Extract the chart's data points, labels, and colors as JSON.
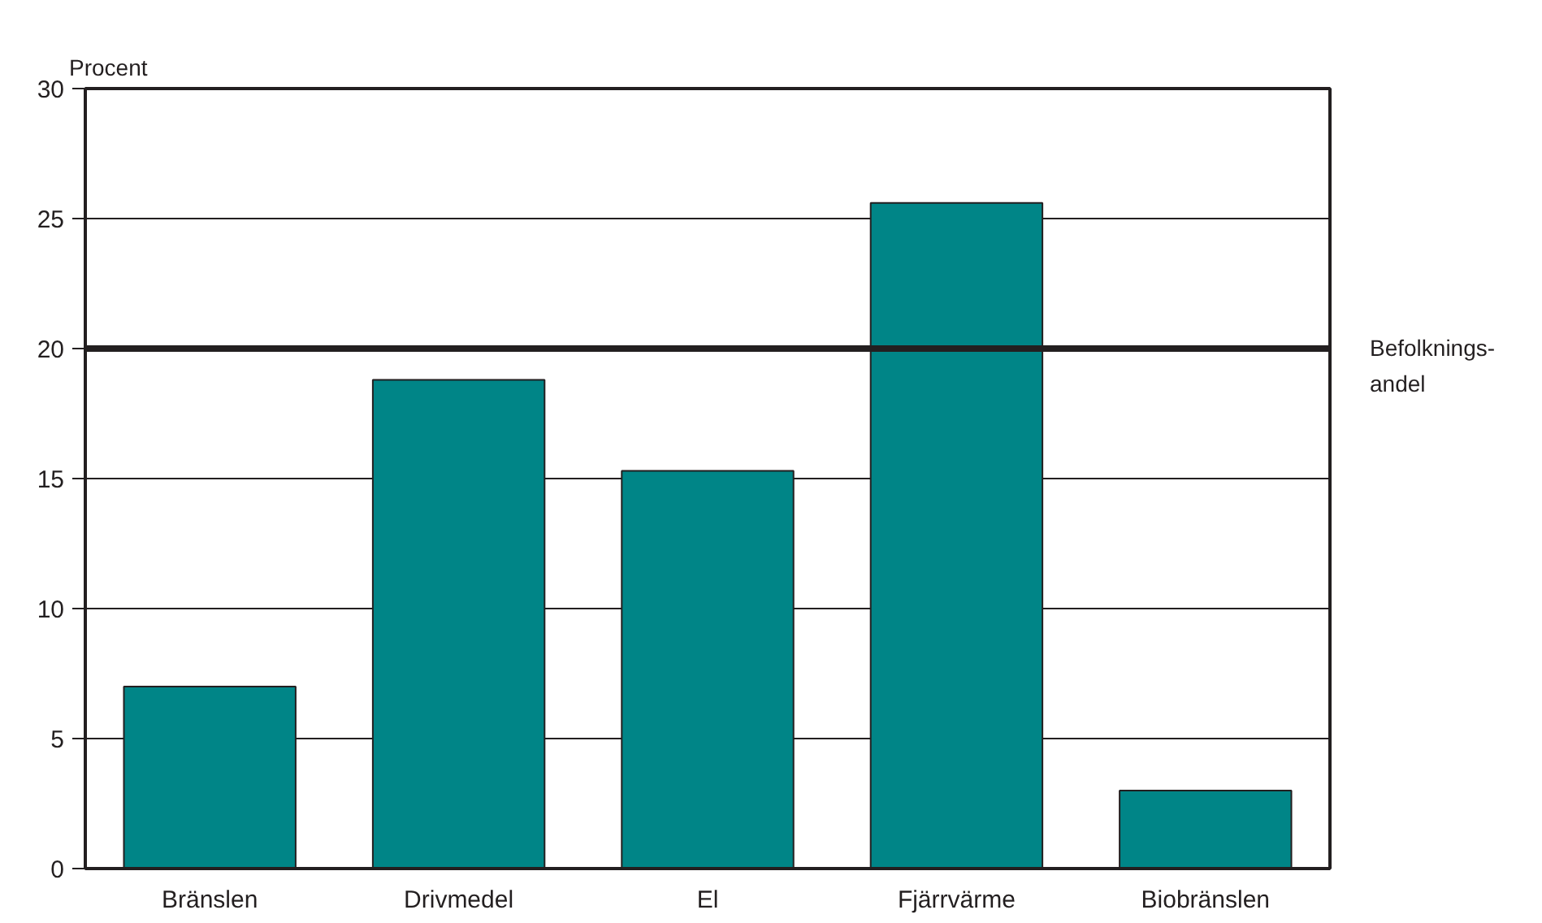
{
  "chart_data": {
    "type": "bar",
    "ylabel": "Procent",
    "categories": [
      "Bränslen",
      "Drivmedel",
      "El",
      "Fjärrvärme",
      "Biobränslen"
    ],
    "values": [
      7.0,
      18.8,
      15.3,
      25.6,
      3.0
    ],
    "color": "#008587",
    "ylim": [
      0,
      30
    ],
    "yticks": [
      0,
      5,
      10,
      15,
      20,
      25,
      30
    ],
    "grid": "y",
    "ref_lines": [
      {
        "axis": "y",
        "value": 20,
        "label": "Befolknings-\nandel",
        "color": "#231f20"
      }
    ]
  }
}
